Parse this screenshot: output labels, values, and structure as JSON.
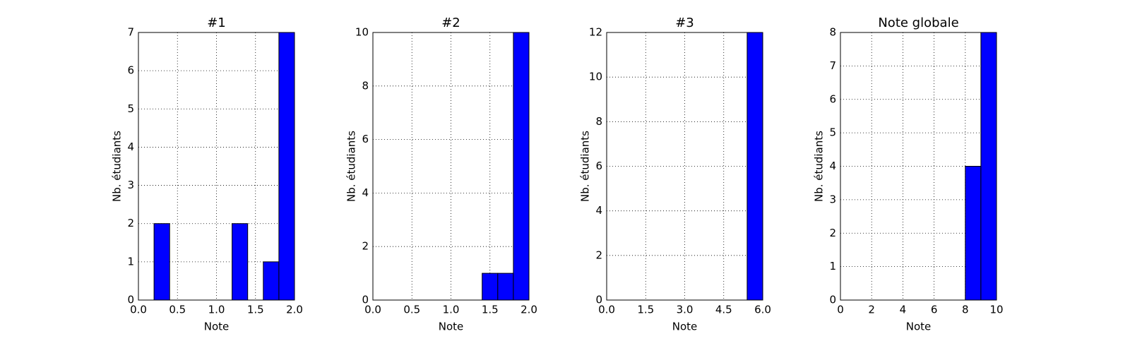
{
  "chart_data": [
    {
      "type": "histogram",
      "title": "#1",
      "xlabel": "Note",
      "ylabel": "Nb. étudiants",
      "color": "#0000ff",
      "grid": true,
      "bins": [
        0,
        0.2,
        0.4,
        0.6,
        0.8,
        1.0,
        1.2,
        1.4,
        1.6,
        1.8,
        2.0
      ],
      "counts": [
        0,
        2,
        0,
        0,
        0,
        0,
        2,
        0,
        1,
        7
      ],
      "xlim": [
        0,
        2
      ],
      "xticks": [
        {
          "value": 0,
          "label": "0.0"
        },
        0.5,
        {
          "value": 1,
          "label": "1.0"
        },
        1.5,
        {
          "value": 2,
          "label": "2.0"
        }
      ],
      "ylim": [
        0,
        7
      ],
      "yticks": [
        0,
        1,
        2,
        3,
        4,
        5,
        6,
        7
      ]
    },
    {
      "type": "histogram",
      "title": "#2",
      "xlabel": "Note",
      "ylabel": "Nb. étudiants",
      "color": "#0000ff",
      "grid": true,
      "bins": [
        0,
        0.2,
        0.4,
        0.6,
        0.8,
        1.0,
        1.2,
        1.4,
        1.6,
        1.8,
        2.0
      ],
      "counts": [
        0,
        0,
        0,
        0,
        0,
        0,
        0,
        1,
        1,
        10
      ],
      "xlim": [
        0,
        2
      ],
      "xticks": [
        {
          "value": 0,
          "label": "0.0"
        },
        0.5,
        {
          "value": 1,
          "label": "1.0"
        },
        1.5,
        {
          "value": 2,
          "label": "2.0"
        }
      ],
      "ylim": [
        0,
        10
      ],
      "yticks": [
        0,
        2,
        4,
        6,
        8,
        10
      ]
    },
    {
      "type": "histogram",
      "title": "#3",
      "xlabel": "Note",
      "ylabel": "Nb. étudiants",
      "color": "#0000ff",
      "grid": true,
      "bins": [
        0,
        0.6,
        1.2,
        1.8,
        2.4,
        3.0,
        3.6,
        4.2,
        4.8,
        5.4,
        6.0
      ],
      "counts": [
        0,
        0,
        0,
        0,
        0,
        0,
        0,
        0,
        0,
        12
      ],
      "xlim": [
        0,
        6
      ],
      "xticks": [
        {
          "value": 0,
          "label": "0.0"
        },
        1.5,
        {
          "value": 3,
          "label": "3.0"
        },
        4.5,
        {
          "value": 6,
          "label": "6.0"
        }
      ],
      "ylim": [
        0,
        12
      ],
      "yticks": [
        0,
        2,
        4,
        6,
        8,
        10,
        12
      ]
    },
    {
      "type": "histogram",
      "title": "Note globale",
      "xlabel": "Note",
      "ylabel": "Nb. étudiants",
      "color": "#0000ff",
      "grid": true,
      "bins": [
        0,
        1,
        2,
        3,
        4,
        5,
        6,
        7,
        8,
        9,
        10
      ],
      "counts": [
        0,
        0,
        0,
        0,
        0,
        0,
        0,
        0,
        4,
        8
      ],
      "xlim": [
        0,
        10
      ],
      "xticks": [
        0,
        2,
        4,
        6,
        8,
        10
      ],
      "ylim": [
        0,
        8
      ],
      "yticks": [
        0,
        1,
        2,
        3,
        4,
        5,
        6,
        7,
        8
      ]
    }
  ]
}
